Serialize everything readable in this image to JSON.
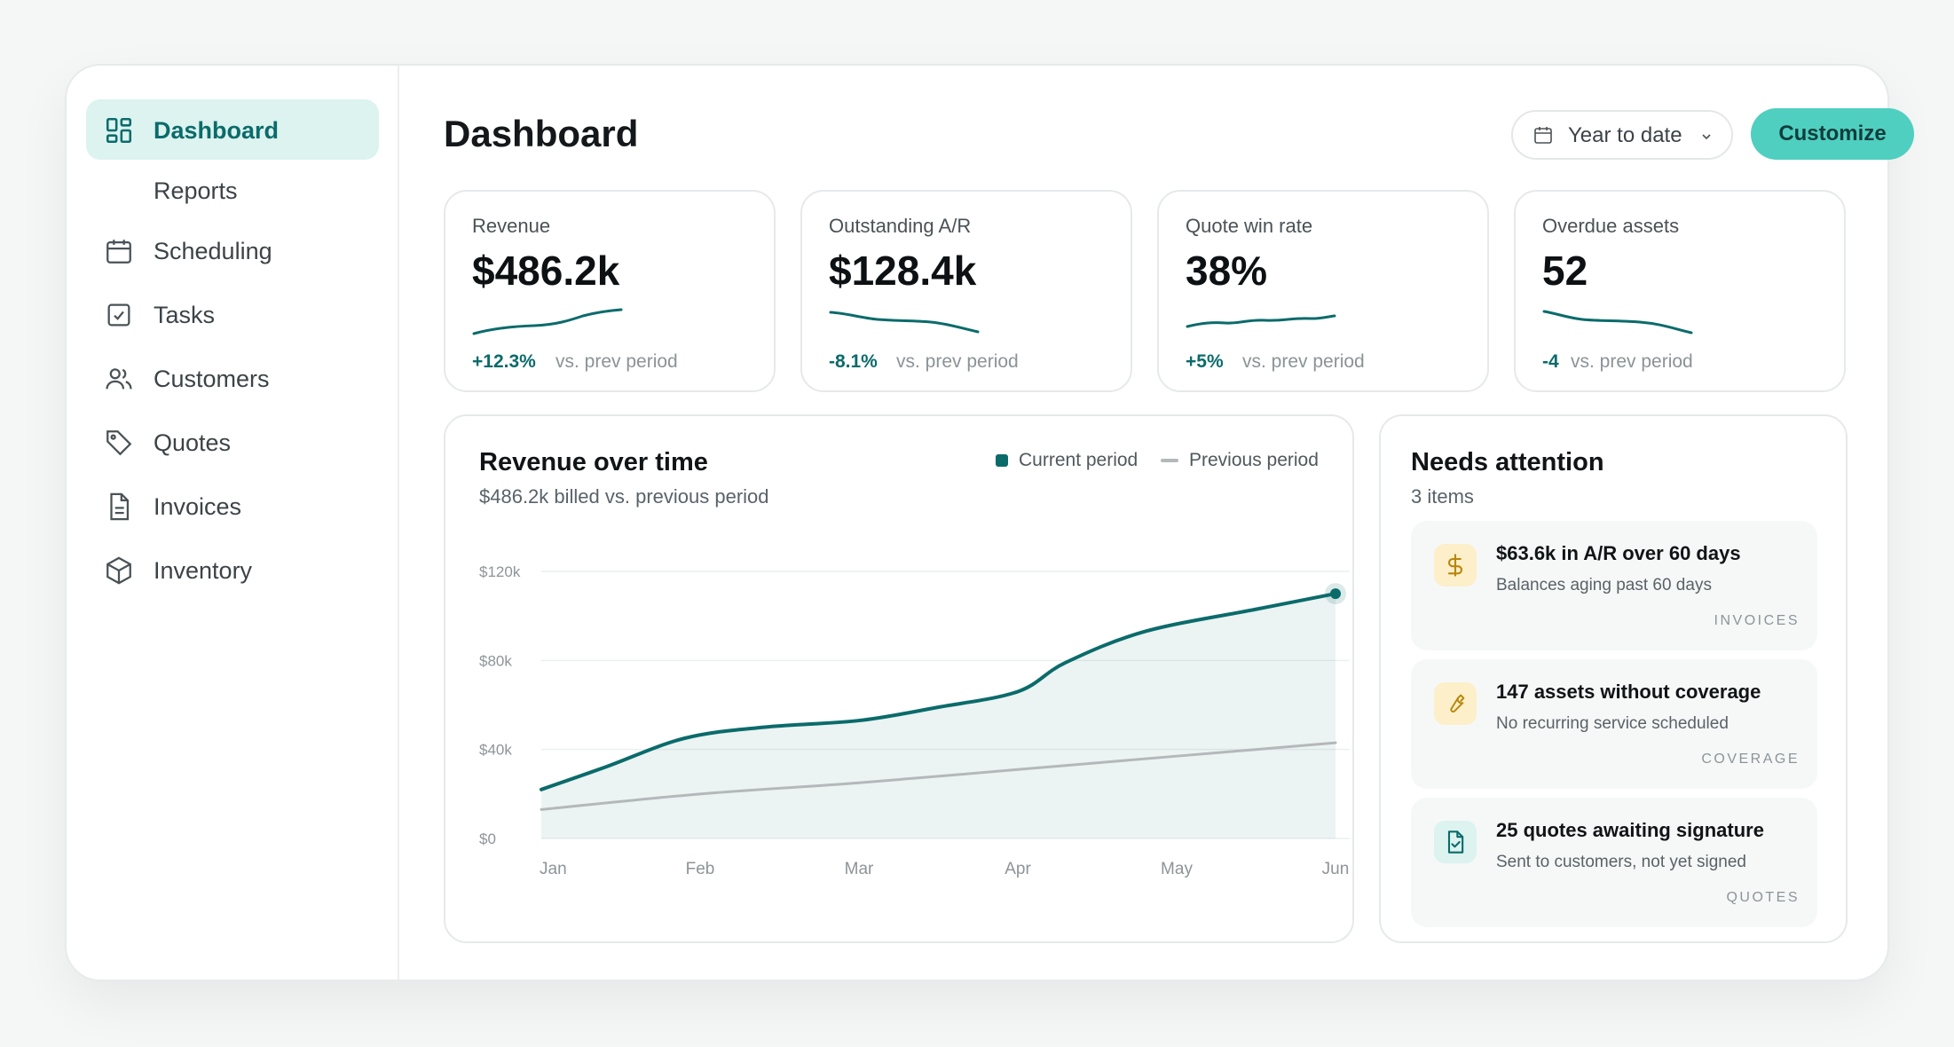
{
  "sidebar": {
    "items": [
      {
        "label": "Dashboard",
        "icon": "grid-icon",
        "active": true
      },
      {
        "label": "Reports",
        "icon": "",
        "active": false
      },
      {
        "label": "Scheduling",
        "icon": "calendar-icon",
        "active": false
      },
      {
        "label": "Tasks",
        "icon": "checkbox-icon",
        "active": false
      },
      {
        "label": "Customers",
        "icon": "users-icon",
        "active": false
      },
      {
        "label": "Quotes",
        "icon": "tag-icon",
        "active": false
      },
      {
        "label": "Invoices",
        "icon": "document-icon",
        "active": false
      },
      {
        "label": "Inventory",
        "icon": "box-icon",
        "active": false
      }
    ]
  },
  "header": {
    "title": "Dashboard",
    "date_range": "Year to date",
    "customize_label": "Customize"
  },
  "stats": [
    {
      "label": "Revenue",
      "value": "$486.2k",
      "delta": "+12.3%",
      "vs": "vs. prev period",
      "trend": "up"
    },
    {
      "label": "Outstanding A/R",
      "value": "$128.4k",
      "delta": "-8.1%",
      "vs": "vs. prev period",
      "trend": "down"
    },
    {
      "label": "Quote win rate",
      "value": "38%",
      "delta": "+5%",
      "vs": "vs. prev period",
      "trend": "up"
    },
    {
      "label": "Overdue assets",
      "value": "52",
      "delta": "-4",
      "vs": "vs. prev period",
      "trend": "down"
    }
  ],
  "revenue_chart": {
    "title": "Revenue over time",
    "subtitle": "$486.2k billed vs. previous period",
    "legend_current": "Current period",
    "legend_previous": "Previous period"
  },
  "chart_data": {
    "type": "area",
    "title": "Revenue over time",
    "subtitle": "$486.2k billed vs. previous period",
    "x": [
      "Jan",
      "Feb",
      "Mar",
      "Apr",
      "May",
      "Jun"
    ],
    "x_positions": [
      0,
      1,
      2,
      3,
      4,
      5
    ],
    "ylim": [
      0,
      120000
    ],
    "y_ticks": [
      0,
      40000,
      80000,
      120000
    ],
    "y_tick_labels": [
      "$0",
      "$40k",
      "$80k",
      "$120k"
    ],
    "grid": true,
    "legend": "top-right",
    "series": [
      {
        "name": "Current period",
        "color": "#0b6b6b",
        "x": [
          0,
          0.4,
          0.9,
          1.4,
          2.0,
          2.5,
          3.0,
          3.3,
          3.8,
          4.5,
          5.0
        ],
        "values": [
          22000,
          32000,
          45000,
          50000,
          53000,
          59000,
          66000,
          79000,
          93000,
          103000,
          110000
        ]
      },
      {
        "name": "Previous period",
        "color": "#b4b8ba",
        "x": [
          0,
          1,
          2,
          3,
          4,
          5
        ],
        "values": [
          13000,
          20000,
          25000,
          31000,
          37000,
          43000
        ]
      }
    ]
  },
  "attention": {
    "title": "Needs attention",
    "subtitle": "3 items",
    "items": [
      {
        "title": "$63.6k in A/R over 60 days",
        "desc": "Balances aging past 60 days",
        "tag": "INVOICES",
        "icon": "dollar-icon"
      },
      {
        "title": "147 assets without coverage",
        "desc": "No recurring service scheduled",
        "tag": "COVERAGE",
        "icon": "wrench-icon"
      },
      {
        "title": "25 quotes awaiting signature",
        "desc": "Sent to customers, not yet signed",
        "tag": "QUOTES",
        "icon": "signed-document-icon"
      }
    ]
  },
  "colors": {
    "accent": "#0b6b6b",
    "accent_light": "#dcf3ef",
    "button": "#4fcfbf",
    "previous": "#b4b8ba"
  }
}
